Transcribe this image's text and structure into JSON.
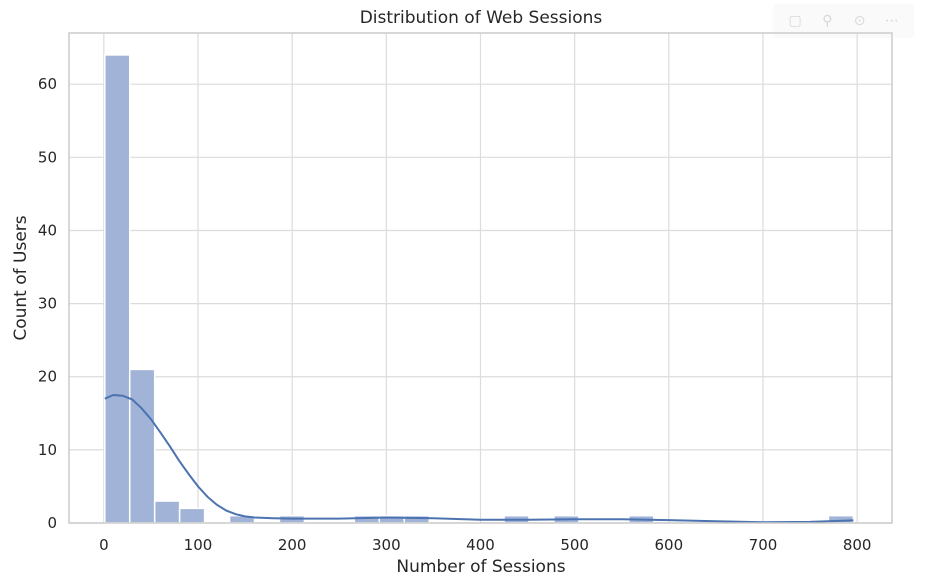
{
  "toolbar": {
    "icons": [
      "comment-icon",
      "person-icon",
      "history-icon",
      "more-icon"
    ],
    "glyphs": [
      "▢",
      "⚲",
      "⊙",
      "⋯"
    ]
  },
  "chart_data": {
    "type": "bar",
    "title": "Distribution of Web Sessions",
    "xlabel": "Number of Sessions",
    "ylabel": "Count of Users",
    "xlim": [
      -37,
      837
    ],
    "ylim": [
      0,
      67
    ],
    "xticks": [
      0,
      100,
      200,
      300,
      400,
      500,
      600,
      700,
      800
    ],
    "yticks": [
      0,
      10,
      20,
      30,
      40,
      50,
      60
    ],
    "grid": true,
    "bin_width": 26.5,
    "bins": [
      {
        "x0": 1.0,
        "count": 64
      },
      {
        "x0": 27.5,
        "count": 21
      },
      {
        "x0": 54.0,
        "count": 3
      },
      {
        "x0": 80.5,
        "count": 2
      },
      {
        "x0": 107.0,
        "count": 0
      },
      {
        "x0": 133.5,
        "count": 1
      },
      {
        "x0": 160.0,
        "count": 0
      },
      {
        "x0": 186.5,
        "count": 1
      },
      {
        "x0": 213.0,
        "count": 0
      },
      {
        "x0": 239.5,
        "count": 0
      },
      {
        "x0": 266.0,
        "count": 1
      },
      {
        "x0": 292.5,
        "count": 1
      },
      {
        "x0": 319.0,
        "count": 1
      },
      {
        "x0": 345.5,
        "count": 0
      },
      {
        "x0": 372.0,
        "count": 0
      },
      {
        "x0": 398.5,
        "count": 0
      },
      {
        "x0": 425.0,
        "count": 1
      },
      {
        "x0": 451.5,
        "count": 0
      },
      {
        "x0": 478.0,
        "count": 1
      },
      {
        "x0": 504.5,
        "count": 0
      },
      {
        "x0": 531.0,
        "count": 0
      },
      {
        "x0": 557.5,
        "count": 1
      },
      {
        "x0": 584.0,
        "count": 0
      },
      {
        "x0": 610.5,
        "count": 0
      },
      {
        "x0": 637.0,
        "count": 0
      },
      {
        "x0": 663.5,
        "count": 0
      },
      {
        "x0": 690.0,
        "count": 0
      },
      {
        "x0": 716.5,
        "count": 0
      },
      {
        "x0": 743.0,
        "count": 0
      },
      {
        "x0": 769.5,
        "count": 1
      }
    ],
    "kde": {
      "x": [
        1,
        10,
        20,
        30,
        40,
        50,
        60,
        70,
        80,
        90,
        100,
        110,
        120,
        130,
        140,
        150,
        160,
        180,
        200,
        250,
        300,
        350,
        400,
        450,
        500,
        550,
        600,
        650,
        700,
        750,
        796
      ],
      "y": [
        17.0,
        17.5,
        17.4,
        16.9,
        15.7,
        14.2,
        12.4,
        10.5,
        8.5,
        6.7,
        5.0,
        3.6,
        2.5,
        1.7,
        1.2,
        0.9,
        0.75,
        0.65,
        0.6,
        0.6,
        0.75,
        0.65,
        0.45,
        0.45,
        0.5,
        0.5,
        0.4,
        0.25,
        0.1,
        0.15,
        0.35
      ]
    },
    "colors": {
      "bar": "#a1b4d8",
      "bar_edge": "#ffffff",
      "line": "#4c72b0",
      "grid": "#dcdcdc",
      "frame": "#cccccc"
    }
  }
}
